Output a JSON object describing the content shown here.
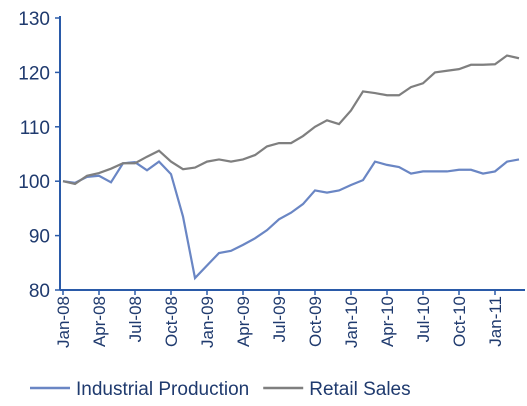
{
  "chart_data": {
    "type": "line",
    "categories": [
      "Jan-08",
      null,
      null,
      "Apr-08",
      null,
      null,
      "Jul-08",
      null,
      null,
      "Oct-08",
      null,
      null,
      "Jan-09",
      null,
      null,
      "Apr-09",
      null,
      null,
      "Jul-09",
      null,
      null,
      "Oct-09",
      null,
      null,
      "Jan-10",
      null,
      null,
      "Apr-10",
      null,
      null,
      "Jul-10",
      null,
      null,
      "Oct-10",
      null,
      null,
      "Jan-11",
      null,
      null
    ],
    "series": [
      {
        "name": "Industrial Production",
        "color": "#6a86c4",
        "values": [
          100,
          99.7,
          100.8,
          101,
          99.8,
          103.3,
          103.5,
          102,
          103.6,
          101.3,
          93.5,
          82.2,
          84.5,
          86.8,
          87.2,
          88.3,
          89.5,
          91,
          93,
          94.2,
          95.8,
          98.3,
          97.9,
          98.3,
          99.3,
          100.2,
          103.6,
          103,
          102.6,
          101.4,
          101.8,
          101.8,
          101.8,
          102.1,
          102.1,
          101.4,
          101.8,
          103.6,
          104
        ]
      },
      {
        "name": "Retail Sales",
        "color": "#7f7f7f",
        "values": [
          100,
          99.5,
          101,
          101.5,
          102.3,
          103.3,
          103.3,
          104.5,
          105.6,
          103.6,
          102.2,
          102.5,
          103.6,
          104,
          103.6,
          104,
          104.8,
          106.4,
          107,
          107,
          108.3,
          110,
          111.2,
          110.5,
          113,
          116.5,
          116.2,
          115.8,
          115.8,
          117.3,
          118,
          120,
          120.3,
          120.6,
          121.4,
          121.4,
          121.5,
          123.1,
          122.6
        ]
      }
    ],
    "ylim": [
      80,
      130
    ],
    "yticks": [
      80,
      90,
      100,
      110,
      120,
      130
    ],
    "grid": false,
    "legend": "bottom"
  }
}
